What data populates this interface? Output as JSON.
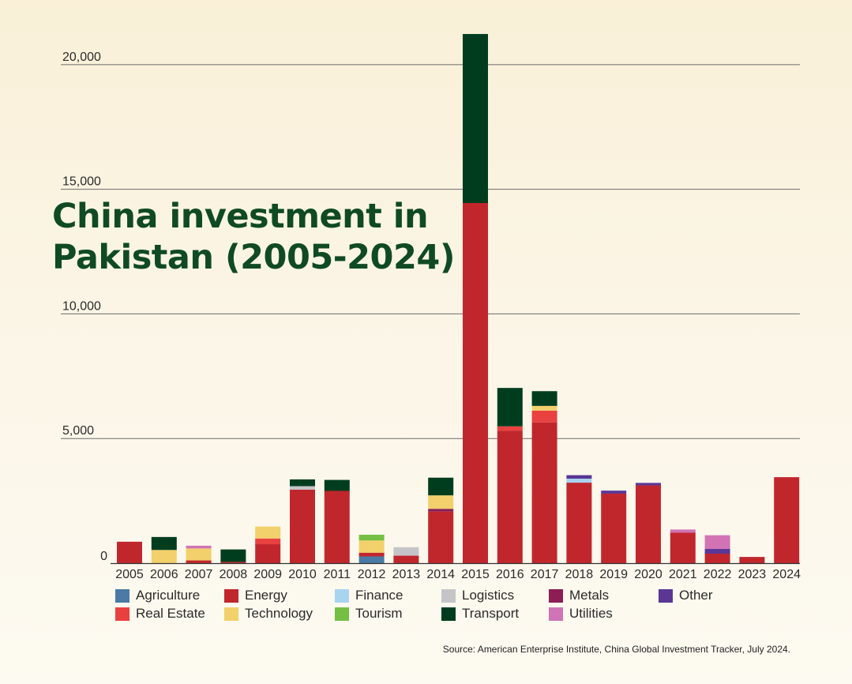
{
  "chart_data": {
    "type": "bar",
    "stacked": true,
    "title": "China investment in Pakistan (2005-2024)",
    "title_lines": [
      "China investment in",
      "Pakistan (2005-2024)"
    ],
    "source": "Source: American Enterprise Institute, China Global Investment Tracker, July 2024.",
    "ylim": [
      0,
      21200
    ],
    "yticks": [
      0,
      5000,
      10000,
      15000,
      20000
    ],
    "ytick_labels": [
      "0",
      "5,000",
      "10,000",
      "15,000",
      "20,000"
    ],
    "grid": true,
    "legend_position": "bottom",
    "categories": [
      "2005",
      "2006",
      "2007",
      "2008",
      "2009",
      "2010",
      "2011",
      "2012",
      "2013",
      "2014",
      "2015",
      "2016",
      "2017",
      "2018",
      "2019",
      "2020",
      "2021",
      "2022",
      "2023",
      "2024"
    ],
    "series": [
      {
        "name": "Agriculture",
        "color": "#4a7aa5",
        "values": [
          0,
          0,
          0,
          0,
          0,
          0,
          0,
          270,
          0,
          0,
          0,
          0,
          0,
          0,
          0,
          0,
          0,
          0,
          0,
          0
        ]
      },
      {
        "name": "Energy",
        "color": "#c0272d",
        "values": [
          860,
          0,
          110,
          50,
          760,
          2950,
          2900,
          150,
          300,
          2070,
          14450,
          5310,
          5650,
          3230,
          2790,
          3120,
          1220,
          380,
          250,
          3450
        ]
      },
      {
        "name": "Finance",
        "color": "#a9d4f0",
        "values": [
          0,
          0,
          0,
          0,
          0,
          0,
          0,
          0,
          0,
          0,
          0,
          0,
          0,
          160,
          0,
          0,
          0,
          0,
          0,
          0
        ]
      },
      {
        "name": "Logistics",
        "color": "#c5c5c9",
        "values": [
          0,
          0,
          0,
          0,
          0,
          140,
          0,
          0,
          340,
          0,
          0,
          0,
          0,
          0,
          0,
          0,
          0,
          0,
          0,
          0
        ]
      },
      {
        "name": "Metals",
        "color": "#8c1e55",
        "values": [
          0,
          0,
          0,
          0,
          0,
          0,
          0,
          0,
          0,
          110,
          0,
          0,
          0,
          0,
          0,
          0,
          0,
          0,
          0,
          0
        ]
      },
      {
        "name": "Other",
        "color": "#5a3795",
        "values": [
          0,
          0,
          0,
          0,
          0,
          0,
          0,
          0,
          0,
          0,
          0,
          0,
          0,
          140,
          120,
          100,
          0,
          190,
          0,
          0
        ]
      },
      {
        "name": "Real Estate",
        "color": "#e8413f",
        "values": [
          0,
          0,
          0,
          0,
          230,
          0,
          0,
          0,
          0,
          0,
          0,
          180,
          470,
          0,
          0,
          0,
          0,
          0,
          0,
          0
        ]
      },
      {
        "name": "Technology",
        "color": "#f2d06b",
        "values": [
          0,
          530,
          480,
          0,
          480,
          0,
          0,
          490,
          0,
          540,
          0,
          0,
          190,
          0,
          0,
          0,
          0,
          0,
          0,
          0
        ]
      },
      {
        "name": "Tourism",
        "color": "#74bf44",
        "values": [
          0,
          0,
          0,
          0,
          0,
          0,
          0,
          230,
          0,
          0,
          0,
          0,
          0,
          0,
          0,
          0,
          0,
          0,
          0,
          0
        ]
      },
      {
        "name": "Transport",
        "color": "#003d1f",
        "values": [
          0,
          520,
          0,
          500,
          0,
          270,
          440,
          0,
          0,
          710,
          6780,
          1540,
          590,
          0,
          0,
          0,
          0,
          0,
          0,
          0
        ]
      },
      {
        "name": "Utilities",
        "color": "#d173b5",
        "values": [
          0,
          0,
          110,
          0,
          0,
          0,
          0,
          0,
          0,
          0,
          0,
          0,
          0,
          0,
          0,
          0,
          130,
          550,
          0,
          0
        ]
      }
    ],
    "legend_rows": [
      [
        "Agriculture",
        "Energy",
        "Finance",
        "Logistics",
        "Metals",
        "Other"
      ],
      [
        "Real Estate",
        "Technology",
        "Tourism",
        "Transport",
        "Utilities"
      ]
    ]
  }
}
